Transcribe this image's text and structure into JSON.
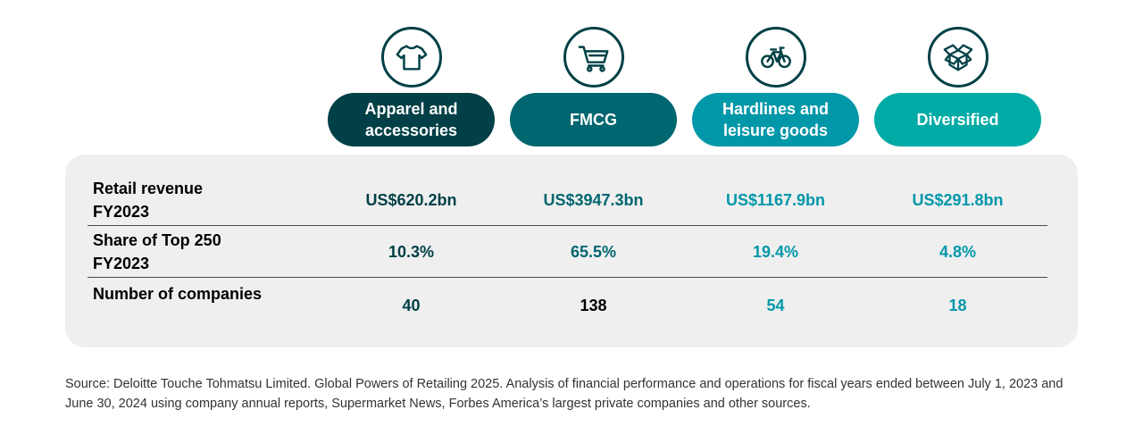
{
  "chart_data": {
    "type": "table",
    "categories": [
      "Apparel and accessories",
      "FMCG",
      "Hardlines and leisure goods",
      "Diversified"
    ],
    "category_icons": [
      "tshirt-icon",
      "shopping-cart-icon",
      "bicycle-icon",
      "open-box-icon"
    ],
    "category_colors": [
      "#004046",
      "#00666f",
      "#0097a9",
      "#00aba5"
    ],
    "value_colors": [
      "#004046",
      "#00666f",
      "#0097a9",
      "#0097a9"
    ],
    "rows": [
      {
        "label": "Retail revenue FY2023",
        "values": [
          "US$620.2bn",
          "US$3947.3bn",
          "US$1167.9bn",
          "US$291.8bn"
        ]
      },
      {
        "label": "Share of Top 250 FY2023",
        "values": [
          "10.3%",
          "65.5%",
          "19.4%",
          "4.8%"
        ]
      },
      {
        "label": "Number of companies",
        "values": [
          "40",
          "138",
          "54",
          "18"
        ]
      }
    ]
  },
  "source": "Source: Deloitte Touche Tohmatsu Limited. Global Powers of Retailing 2025. Analysis of financial performance and operations for fiscal years ended between July 1, 2023 and June 30, 2024 using company annual reports, Supermarket News, Forbes America’s largest private companies and other sources."
}
